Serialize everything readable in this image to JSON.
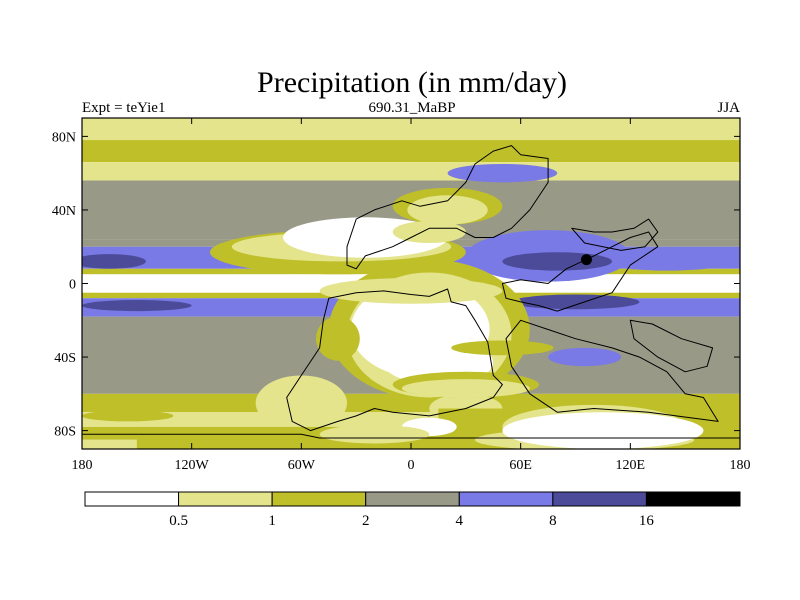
{
  "chart_data": {
    "type": "heatmap",
    "title": "Precipitation (in mm/day)",
    "left_label": "Expt = teYie1",
    "center_label": "690.31_MaBP",
    "right_label": "JJA",
    "x_ticks": [
      {
        "value": -180,
        "label": "180"
      },
      {
        "value": -120,
        "label": "120W"
      },
      {
        "value": -60,
        "label": "60W"
      },
      {
        "value": 0,
        "label": "0"
      },
      {
        "value": 60,
        "label": "60E"
      },
      {
        "value": 120,
        "label": "120E"
      },
      {
        "value": 180,
        "label": "180"
      }
    ],
    "y_ticks": [
      {
        "value": 80,
        "label": "80N"
      },
      {
        "value": 40,
        "label": "40N"
      },
      {
        "value": 0,
        "label": "0"
      },
      {
        "value": -40,
        "label": "40S"
      },
      {
        "value": -80,
        "label": "80S"
      }
    ],
    "xlim": [
      -180,
      180
    ],
    "ylim": [
      -90,
      90
    ],
    "colorbar": {
      "levels": [
        "0.5",
        "1",
        "2",
        "4",
        "8",
        "16"
      ],
      "colors": [
        "#ffffff",
        "#e4e48c",
        "#bfbf29",
        "#999988",
        "#7a7ae6",
        "#4b4b9a",
        "#000000"
      ]
    },
    "bands": [
      {
        "lat": [
          78,
          90
        ],
        "level": 1
      },
      {
        "lat": [
          66,
          78
        ],
        "level": 2
      },
      {
        "lat": [
          56,
          66
        ],
        "level": 1
      },
      {
        "lat": [
          24,
          56
        ],
        "level": 3
      },
      {
        "lat": [
          20,
          24
        ],
        "level": 3
      },
      {
        "lat": [
          8,
          20
        ],
        "level": 4
      },
      {
        "lat": [
          5,
          8
        ],
        "level": 2
      },
      {
        "lat": [
          -5,
          5
        ],
        "level": 0
      },
      {
        "lat": [
          -8,
          -5
        ],
        "level": 2
      },
      {
        "lat": [
          -18,
          -8
        ],
        "level": 4
      },
      {
        "lat": [
          -60,
          -18
        ],
        "level": 3
      },
      {
        "lat": [
          -70,
          -60
        ],
        "level": 2
      },
      {
        "lat": [
          -78,
          -70
        ],
        "level": 1
      },
      {
        "lat": [
          -85,
          -78
        ],
        "level": 2
      },
      {
        "lat": [
          -90,
          -85
        ],
        "level": 1
      }
    ],
    "patches": [
      {
        "shape": "ellipse",
        "lon": 140,
        "lat": 12,
        "rlon": 35,
        "rlat": 5,
        "level": 4
      },
      {
        "shape": "ellipse",
        "lon": -165,
        "lat": 12,
        "rlon": 20,
        "rlat": 4,
        "level": 5
      },
      {
        "shape": "ellipse",
        "lon": 75,
        "lat": 15,
        "rlon": 45,
        "rlat": 14,
        "level": 4
      },
      {
        "shape": "ellipse",
        "lon": 80,
        "lat": 12,
        "rlon": 30,
        "rlat": 5,
        "level": 5
      },
      {
        "shape": "ellipse",
        "lon": 96,
        "lat": 13,
        "rlon": 3,
        "rlat": 3,
        "level": 6
      },
      {
        "shape": "ellipse",
        "lon": -150,
        "lat": -12,
        "rlon": 30,
        "rlat": 3,
        "level": 5
      },
      {
        "shape": "ellipse",
        "lon": 90,
        "lat": -10,
        "rlon": 35,
        "rlat": 4,
        "level": 5
      },
      {
        "shape": "ellipse",
        "lon": -40,
        "lat": 17,
        "rlon": 70,
        "rlat": 12,
        "level": 2
      },
      {
        "shape": "ellipse",
        "lon": -38,
        "lat": 20,
        "rlon": 60,
        "rlat": 8,
        "level": 1
      },
      {
        "shape": "ellipse",
        "lon": -25,
        "lat": 25,
        "rlon": 45,
        "rlat": 11,
        "level": 0
      },
      {
        "shape": "ellipse",
        "lon": 20,
        "lat": 42,
        "rlon": 30,
        "rlat": 10,
        "level": 2
      },
      {
        "shape": "ellipse",
        "lon": 20,
        "lat": 40,
        "rlon": 22,
        "rlat": 8,
        "level": 1
      },
      {
        "shape": "ellipse",
        "lon": 10,
        "lat": 28,
        "rlon": 20,
        "rlat": 6,
        "level": 1
      },
      {
        "shape": "ellipse",
        "lon": 50,
        "lat": 60,
        "rlon": 30,
        "rlat": 5,
        "level": 4
      },
      {
        "shape": "ellipse",
        "lon": 10,
        "lat": -25,
        "rlon": 55,
        "rlat": 38,
        "level": 2
      },
      {
        "shape": "ellipse",
        "lon": 10,
        "lat": -28,
        "rlon": 45,
        "rlat": 34,
        "level": 1
      },
      {
        "shape": "ellipse",
        "lon": 5,
        "lat": -25,
        "rlon": 38,
        "rlat": 26,
        "level": 0
      },
      {
        "shape": "ellipse",
        "lon": 15,
        "lat": -43,
        "rlon": 30,
        "rlat": 12,
        "level": 0
      },
      {
        "shape": "ellipse",
        "lon": -60,
        "lat": -65,
        "rlon": 25,
        "rlat": 15,
        "level": 1
      },
      {
        "shape": "ellipse",
        "lon": 30,
        "lat": -68,
        "rlon": 20,
        "rlat": 8,
        "level": 1
      },
      {
        "shape": "ellipse",
        "lon": -155,
        "lat": -72,
        "rlon": 25,
        "rlat": 3,
        "level": 2
      },
      {
        "shape": "rect",
        "lon": [
          15,
          180
        ],
        "lat": [
          -90,
          -68
        ],
        "level": 2
      },
      {
        "shape": "rect",
        "lon": [
          -150,
          60
        ],
        "lat": [
          -90,
          -78
        ],
        "level": 2
      },
      {
        "shape": "ellipse",
        "lon": 95,
        "lat": -85,
        "rlon": 60,
        "rlat": 6,
        "level": 1
      },
      {
        "shape": "ellipse",
        "lon": 100,
        "lat": -78,
        "rlon": 50,
        "rlat": 12,
        "level": 1
      },
      {
        "shape": "ellipse",
        "lon": 105,
        "lat": -80,
        "rlon": 55,
        "rlat": 10,
        "level": 0
      },
      {
        "shape": "ellipse",
        "lon": 10,
        "lat": -78,
        "rlon": 15,
        "rlat": 5,
        "level": 0
      },
      {
        "shape": "ellipse",
        "lon": -20,
        "lat": -82,
        "rlon": 30,
        "rlat": 5,
        "level": 1
      },
      {
        "shape": "ellipse",
        "lon": 0,
        "lat": -4,
        "rlon": 50,
        "rlat": 7,
        "level": 1
      },
      {
        "shape": "ellipse",
        "lon": -40,
        "lat": -30,
        "rlon": 12,
        "rlat": 12,
        "level": 2
      },
      {
        "shape": "ellipse",
        "lon": 50,
        "lat": -35,
        "rlon": 28,
        "rlat": 4,
        "level": 2
      },
      {
        "shape": "ellipse",
        "lon": 30,
        "lat": -55,
        "rlon": 40,
        "rlat": 7,
        "level": 2
      },
      {
        "shape": "ellipse",
        "lon": 30,
        "lat": -57,
        "rlon": 35,
        "rlat": 5,
        "level": 1
      },
      {
        "shape": "ellipse",
        "lon": 95,
        "lat": -40,
        "rlon": 20,
        "rlat": 5,
        "level": 4
      },
      {
        "shape": "ellipse",
        "lon": 135,
        "lat": -35,
        "rlon": 20,
        "rlat": 4,
        "level": 3
      }
    ],
    "landmasses": [
      [
        [
          -30,
          35
        ],
        [
          -20,
          40
        ],
        [
          -5,
          45
        ],
        [
          5,
          42
        ],
        [
          20,
          45
        ],
        [
          30,
          55
        ],
        [
          35,
          65
        ],
        [
          45,
          72
        ],
        [
          55,
          75
        ],
        [
          60,
          70
        ],
        [
          75,
          68
        ],
        [
          75,
          55
        ],
        [
          65,
          40
        ],
        [
          55,
          30
        ],
        [
          45,
          25
        ],
        [
          35,
          25
        ],
        [
          25,
          30
        ],
        [
          10,
          30
        ],
        [
          0,
          25
        ],
        [
          -10,
          20
        ],
        [
          -25,
          15
        ],
        [
          -30,
          8
        ],
        [
          -35,
          10
        ],
        [
          -35,
          20
        ]
      ],
      [
        [
          -45,
          -8
        ],
        [
          -30,
          -5
        ],
        [
          -15,
          -4
        ],
        [
          0,
          -6
        ],
        [
          10,
          -7
        ],
        [
          20,
          -3
        ],
        [
          22,
          -10
        ],
        [
          30,
          -12
        ],
        [
          35,
          -20
        ],
        [
          42,
          -32
        ],
        [
          45,
          -50
        ],
        [
          50,
          -55
        ],
        [
          45,
          -62
        ],
        [
          30,
          -68
        ],
        [
          10,
          -72
        ],
        [
          -10,
          -70
        ],
        [
          -20,
          -68
        ],
        [
          -30,
          -72
        ],
        [
          -40,
          -75
        ],
        [
          -55,
          -80
        ],
        [
          -65,
          -75
        ],
        [
          -68,
          -62
        ],
        [
          -60,
          -50
        ],
        [
          -50,
          -35
        ],
        [
          -48,
          -20
        ]
      ],
      [
        [
          50,
          0
        ],
        [
          60,
          2
        ],
        [
          75,
          0
        ],
        [
          85,
          8
        ],
        [
          100,
          15
        ],
        [
          110,
          20
        ],
        [
          120,
          25
        ],
        [
          130,
          28
        ],
        [
          135,
          20
        ],
        [
          120,
          10
        ],
        [
          110,
          -5
        ],
        [
          95,
          -10
        ],
        [
          80,
          -15
        ],
        [
          70,
          -12
        ],
        [
          60,
          -10
        ],
        [
          52,
          -8
        ]
      ],
      [
        [
          60,
          -20
        ],
        [
          75,
          -25
        ],
        [
          90,
          -30
        ],
        [
          110,
          -35
        ],
        [
          125,
          -40
        ],
        [
          140,
          -48
        ],
        [
          150,
          -60
        ],
        [
          160,
          -62
        ],
        [
          168,
          -75
        ],
        [
          130,
          -70
        ],
        [
          100,
          -68
        ],
        [
          80,
          -70
        ],
        [
          65,
          -60
        ],
        [
          55,
          -45
        ],
        [
          52,
          -30
        ]
      ],
      [
        [
          88,
          30
        ],
        [
          100,
          28
        ],
        [
          110,
          28
        ],
        [
          122,
          30
        ],
        [
          130,
          35
        ],
        [
          135,
          28
        ],
        [
          128,
          20
        ],
        [
          115,
          18
        ],
        [
          105,
          20
        ],
        [
          95,
          22
        ]
      ],
      [
        [
          120,
          -20
        ],
        [
          132,
          -22
        ],
        [
          148,
          -30
        ],
        [
          165,
          -35
        ],
        [
          162,
          -45
        ],
        [
          150,
          -48
        ],
        [
          135,
          -40
        ],
        [
          122,
          -30
        ]
      ],
      [
        [
          -180,
          -82
        ],
        [
          -60,
          -82
        ],
        [
          -50,
          -84
        ],
        [
          180,
          -84
        ],
        [
          180,
          -90
        ],
        [
          -180,
          -90
        ]
      ]
    ]
  }
}
